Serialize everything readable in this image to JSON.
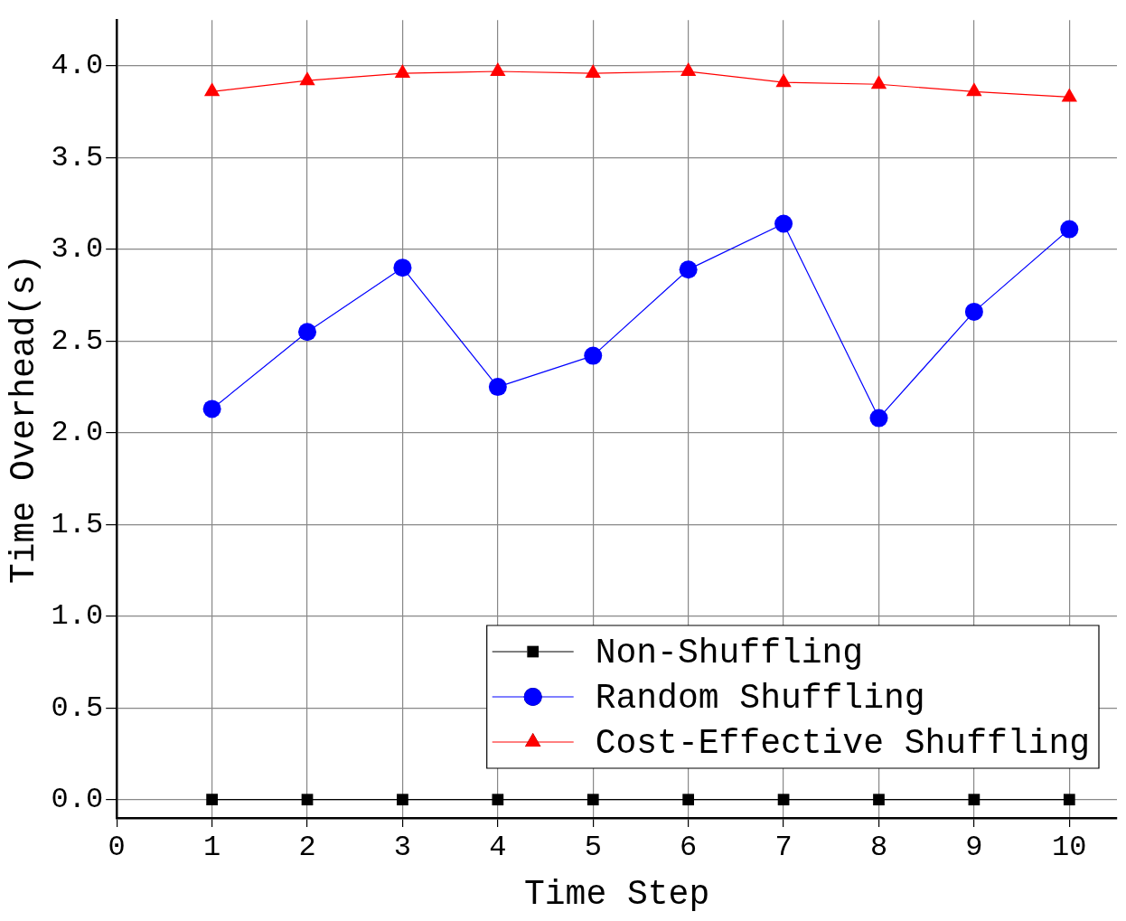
{
  "chart_data": {
    "type": "line",
    "xlabel": "Time Step",
    "ylabel": "Time Overhead(s)",
    "x": [
      1,
      2,
      3,
      4,
      5,
      6,
      7,
      8,
      9,
      10
    ],
    "series": [
      {
        "name": "Non-Shuffling",
        "color": "#000000",
        "marker": "square",
        "values": [
          0,
          0,
          0,
          0,
          0,
          0,
          0,
          0,
          0,
          0
        ]
      },
      {
        "name": "Random Shuffling",
        "color": "#0000ff",
        "marker": "circle",
        "values": [
          2.13,
          2.55,
          2.9,
          2.25,
          2.42,
          2.89,
          3.14,
          2.08,
          2.66,
          3.11
        ]
      },
      {
        "name": "Cost-Effective Shuffling",
        "color": "#ff0000",
        "marker": "triangle",
        "values": [
          3.86,
          3.92,
          3.96,
          3.97,
          3.96,
          3.97,
          3.91,
          3.9,
          3.86,
          3.83
        ]
      }
    ],
    "xlim": [
      0,
      10.5
    ],
    "xticks": [
      0,
      1,
      2,
      3,
      4,
      5,
      6,
      7,
      8,
      9,
      10
    ],
    "ylim": [
      -0.1,
      4.25
    ],
    "yticks": [
      {
        "value": 0,
        "label": "0.0"
      },
      0.5,
      {
        "value": 1,
        "label": "1.0"
      },
      1.5,
      {
        "value": 2,
        "label": "2.0"
      },
      2.5,
      {
        "value": 3,
        "label": "3.0"
      },
      3.5,
      {
        "value": 4,
        "label": "4.0"
      }
    ],
    "grid": true,
    "legend": "bottom right",
    "line_style": "solid"
  }
}
